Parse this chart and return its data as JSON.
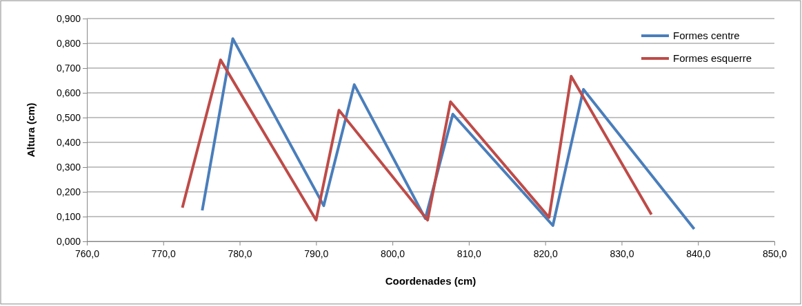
{
  "chart_data": {
    "type": "line",
    "xlabel": "Coordenades (cm)",
    "ylabel": "Altura (cm)",
    "series": [
      {
        "name": "Formes centre",
        "color": "#4a7ebb",
        "x": [
          775.1,
          779.1,
          791.0,
          795.0,
          804.3,
          807.9,
          821.0,
          825.0,
          839.5
        ],
        "values": [
          0.125,
          0.819,
          0.144,
          0.633,
          0.092,
          0.514,
          0.064,
          0.614,
          0.05
        ]
      },
      {
        "name": "Formes esquerre",
        "color": "#be4b48",
        "x": [
          772.5,
          777.5,
          790.0,
          793.0,
          804.6,
          807.6,
          820.5,
          823.4,
          833.9
        ],
        "values": [
          0.136,
          0.733,
          0.086,
          0.53,
          0.086,
          0.564,
          0.097,
          0.667,
          0.108
        ]
      }
    ],
    "xlim": [
      760,
      850
    ],
    "xticks": [
      {
        "value": 760,
        "label": "760,0"
      },
      {
        "value": 770,
        "label": "770,0"
      },
      {
        "value": 780,
        "label": "780,0"
      },
      {
        "value": 790,
        "label": "790,0"
      },
      {
        "value": 800,
        "label": "800,0"
      },
      {
        "value": 810,
        "label": "810,0"
      },
      {
        "value": 820,
        "label": "820,0"
      },
      {
        "value": 830,
        "label": "830,0"
      },
      {
        "value": 840,
        "label": "840,0"
      },
      {
        "value": 850,
        "label": "850,0"
      }
    ],
    "ylim": [
      0,
      0.9
    ],
    "yticks": [
      {
        "value": 0,
        "label": "0,000"
      },
      {
        "value": 0.1,
        "label": "0,100"
      },
      {
        "value": 0.2,
        "label": "0,200"
      },
      {
        "value": 0.3,
        "label": "0,300"
      },
      {
        "value": 0.4,
        "label": "0,400"
      },
      {
        "value": 0.5,
        "label": "0,500"
      },
      {
        "value": 0.6,
        "label": "0,600"
      },
      {
        "value": 0.7,
        "label": "0,700"
      },
      {
        "value": 0.8,
        "label": "0,800"
      },
      {
        "value": 0.9,
        "label": "0,900"
      }
    ],
    "grid": "y",
    "legend": "top right",
    "marker": "none",
    "line_style": "solid"
  }
}
